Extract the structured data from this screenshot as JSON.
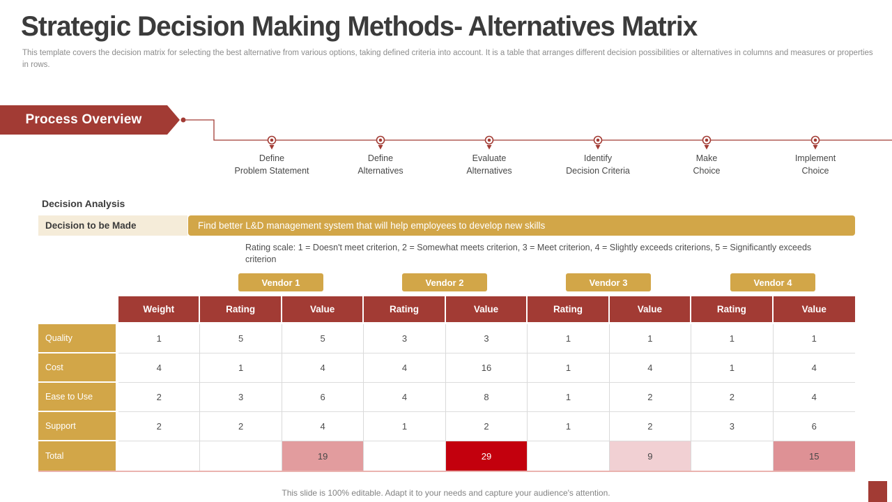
{
  "header": {
    "title": "Strategic Decision Making Methods- Alternatives Matrix",
    "subtitle": "This template covers the decision matrix for selecting the best alternative from various options, taking defined criteria into account. It is a table that arranges different decision possibilities or alternatives in columns and measures or properties in rows."
  },
  "process": {
    "banner_label": "Process Overview",
    "steps": [
      {
        "line1": "Define",
        "line2": "Problem Statement"
      },
      {
        "line1": "Define",
        "line2": "Alternatives"
      },
      {
        "line1": "Evaluate",
        "line2": "Alternatives"
      },
      {
        "line1": "Identify",
        "line2": "Decision Criteria"
      },
      {
        "line1": "Make",
        "line2": "Choice"
      },
      {
        "line1": "Implement",
        "line2": "Choice"
      }
    ]
  },
  "decision": {
    "section_title": "Decision Analysis",
    "label": "Decision to be Made",
    "value": "Find better L&D management system that will help employees to develop new skills",
    "rating_scale": "Rating scale: 1 = Doesn't meet criterion, 2 = Somewhat meets criterion, 3 = Meet criterion, 4 = Slightly exceeds criterions, 5 = Significantly exceeds criterion"
  },
  "vendors": [
    "Vendor 1",
    "Vendor 2",
    "Vendor 3",
    "Vendor 4"
  ],
  "matrix": {
    "columns": [
      "Weight",
      "Rating",
      "Value",
      "Rating",
      "Value",
      "Rating",
      "Value",
      "Rating",
      "Value"
    ],
    "rows": [
      {
        "label": "Quality",
        "values": [
          "1",
          "5",
          "5",
          "3",
          "3",
          "1",
          "1",
          "1",
          "1"
        ]
      },
      {
        "label": "Cost",
        "values": [
          "4",
          "1",
          "4",
          "4",
          "16",
          "1",
          "4",
          "1",
          "4"
        ]
      },
      {
        "label": "Ease to Use",
        "values": [
          "2",
          "3",
          "6",
          "4",
          "8",
          "1",
          "2",
          "2",
          "4"
        ]
      },
      {
        "label": "Support",
        "values": [
          "2",
          "2",
          "4",
          "1",
          "2",
          "1",
          "2",
          "3",
          "6"
        ]
      }
    ],
    "total_row": {
      "label": "Total",
      "values": [
        "",
        "",
        "19",
        "",
        "29",
        "",
        "9",
        "",
        "15"
      ],
      "cell_colors": [
        "",
        "",
        "#e29c9e",
        "",
        "#c3000d",
        "",
        "#f1d0d3",
        "",
        "#de9195"
      ],
      "text_colors": [
        "",
        "",
        "#474747",
        "",
        "#ffffff",
        "",
        "#474747",
        "",
        "#474747"
      ]
    }
  },
  "footer": {
    "note": "This slide is 100% editable. Adapt it to your needs and capture your audience's attention."
  },
  "colors": {
    "brand_red": "#a23b34",
    "gold": "#d2a648",
    "cream": "#f5ecd9",
    "total_pink": "#e29c9e",
    "total_bright_red": "#c3000d",
    "total_pale_pink": "#f1d0d3",
    "total_rose": "#de9195"
  }
}
